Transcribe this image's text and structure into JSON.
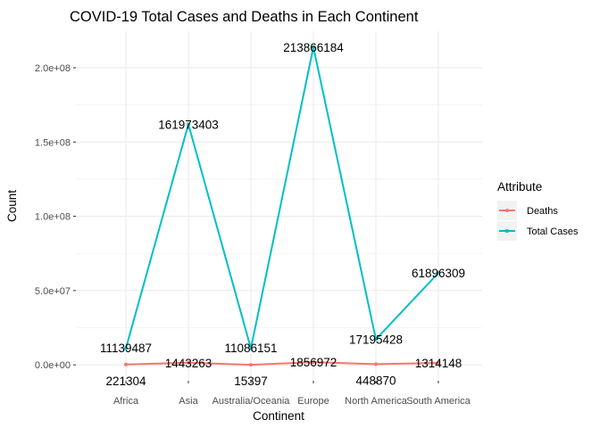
{
  "chart_data": {
    "type": "line",
    "title": "COVID-19 Total Cases and Deaths in Each Continent",
    "xlabel": "Continent",
    "ylabel": "Count",
    "categories": [
      "Africa",
      "Asia",
      "Australia/Oceania",
      "Europe",
      "North America",
      "South America"
    ],
    "ylim": [
      0,
      220000000
    ],
    "yticks": [
      {
        "value": 0,
        "label": "0.0e+00"
      },
      {
        "value": 50000000,
        "label": "5.0e+07"
      },
      {
        "value": 100000000,
        "label": "1.0e+08"
      },
      {
        "value": 150000000,
        "label": "1.5e+08"
      },
      {
        "value": 200000000,
        "label": "2.0e+08"
      }
    ],
    "legend_title": "Attribute",
    "legend_position": "right",
    "series": [
      {
        "name": "Deaths",
        "color": "#F8766D",
        "values": [
          221304,
          1443263,
          15397,
          1856972,
          448870,
          1314148
        ],
        "labels": [
          "221304",
          "1443263",
          "15397",
          "1856972",
          "448870",
          "1314148"
        ]
      },
      {
        "name": "Total Cases",
        "color": "#00BFC4",
        "values": [
          11139487,
          161973403,
          11086151,
          213866184,
          17195428,
          61896309
        ],
        "labels": [
          "11139487",
          "161973403",
          "11086151",
          "213866184",
          "17195428",
          "61896309"
        ]
      }
    ],
    "grid": true,
    "panel_background": "#ffffff",
    "grid_color": "#ebebeb"
  }
}
